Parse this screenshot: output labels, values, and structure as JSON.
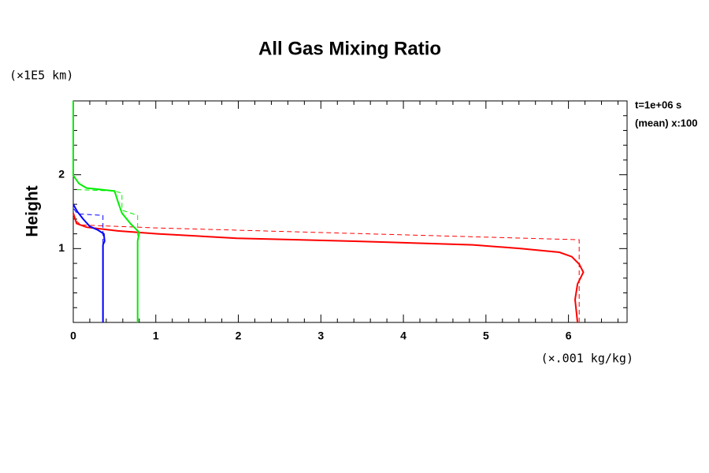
{
  "chart_data": {
    "type": "profile",
    "title": "All Gas Mixing Ratio",
    "ylabel": "Height",
    "yunit": "(×1E5 km)",
    "xunit": "(×.001 kg/kg)",
    "annotations": [
      "t=1e+06 s",
      "(mean) x:100"
    ],
    "xlim": [
      0,
      6.71
    ],
    "ylim": [
      0,
      3
    ],
    "xticks": [
      0,
      1,
      2,
      3,
      4,
      5,
      6
    ],
    "yticks": [
      1,
      2
    ],
    "xminorticks": [
      0.2,
      0.4,
      0.6,
      0.8,
      1.2,
      1.4,
      1.6,
      1.8,
      2.2,
      2.4,
      2.6,
      2.8,
      3.2,
      3.4,
      3.6,
      3.8,
      4.2,
      4.4,
      4.6,
      4.8,
      5.2,
      5.4,
      5.6,
      5.8,
      6.2,
      6.4,
      6.6
    ],
    "yminorticks": [
      0.2,
      0.4,
      0.6,
      0.8,
      1.2,
      1.4,
      1.6,
      1.8,
      2.2,
      2.4,
      2.6,
      2.8
    ],
    "series": [
      {
        "color": "#ff0000",
        "dash": false,
        "x": [
          6.11,
          6.08,
          6.11,
          6.18,
          6.13,
          6.04,
          5.89,
          5.42,
          4.84,
          3.41,
          1.98,
          1.02,
          0.54,
          0.16,
          0.04,
          0
        ],
        "y": [
          0,
          0.31,
          0.52,
          0.68,
          0.79,
          0.89,
          0.95,
          1.0,
          1.05,
          1.1,
          1.14,
          1.2,
          1.24,
          1.29,
          1.34,
          1.48
        ]
      },
      {
        "color": "#ff0000",
        "dash": true,
        "x": [
          6.13,
          6.13,
          1.0,
          0.1,
          0
        ],
        "y": [
          0,
          1.12,
          1.28,
          1.32,
          1.4
        ]
      },
      {
        "color": "#00ee00",
        "dash": false,
        "x": [
          0.78,
          0.78,
          0.8,
          0.7,
          0.59,
          0.54,
          0.5,
          0.16,
          0.07,
          0,
          0
        ],
        "y": [
          0,
          1.1,
          1.22,
          1.33,
          1.48,
          1.64,
          1.78,
          1.82,
          1.88,
          1.99,
          3
        ]
      },
      {
        "color": "#00ee00",
        "dash": true,
        "x": [
          0.78,
          0.78,
          0.59,
          0.59,
          0.5,
          0
        ],
        "y": [
          0,
          1.45,
          1.52,
          1.75,
          1.78,
          1.8
        ]
      },
      {
        "color": "#0000ff",
        "dash": false,
        "x": [
          0.36,
          0.36,
          0.38,
          0.37,
          0.3,
          0.2,
          0.12,
          0.05,
          0
        ],
        "y": [
          0,
          1.05,
          1.1,
          1.2,
          1.25,
          1.3,
          1.4,
          1.5,
          1.6
        ]
      },
      {
        "color": "#0000ff",
        "dash": true,
        "x": [
          0.36,
          0.36,
          0.05,
          0
        ],
        "y": [
          0,
          1.45,
          1.47,
          1.55
        ]
      }
    ]
  }
}
